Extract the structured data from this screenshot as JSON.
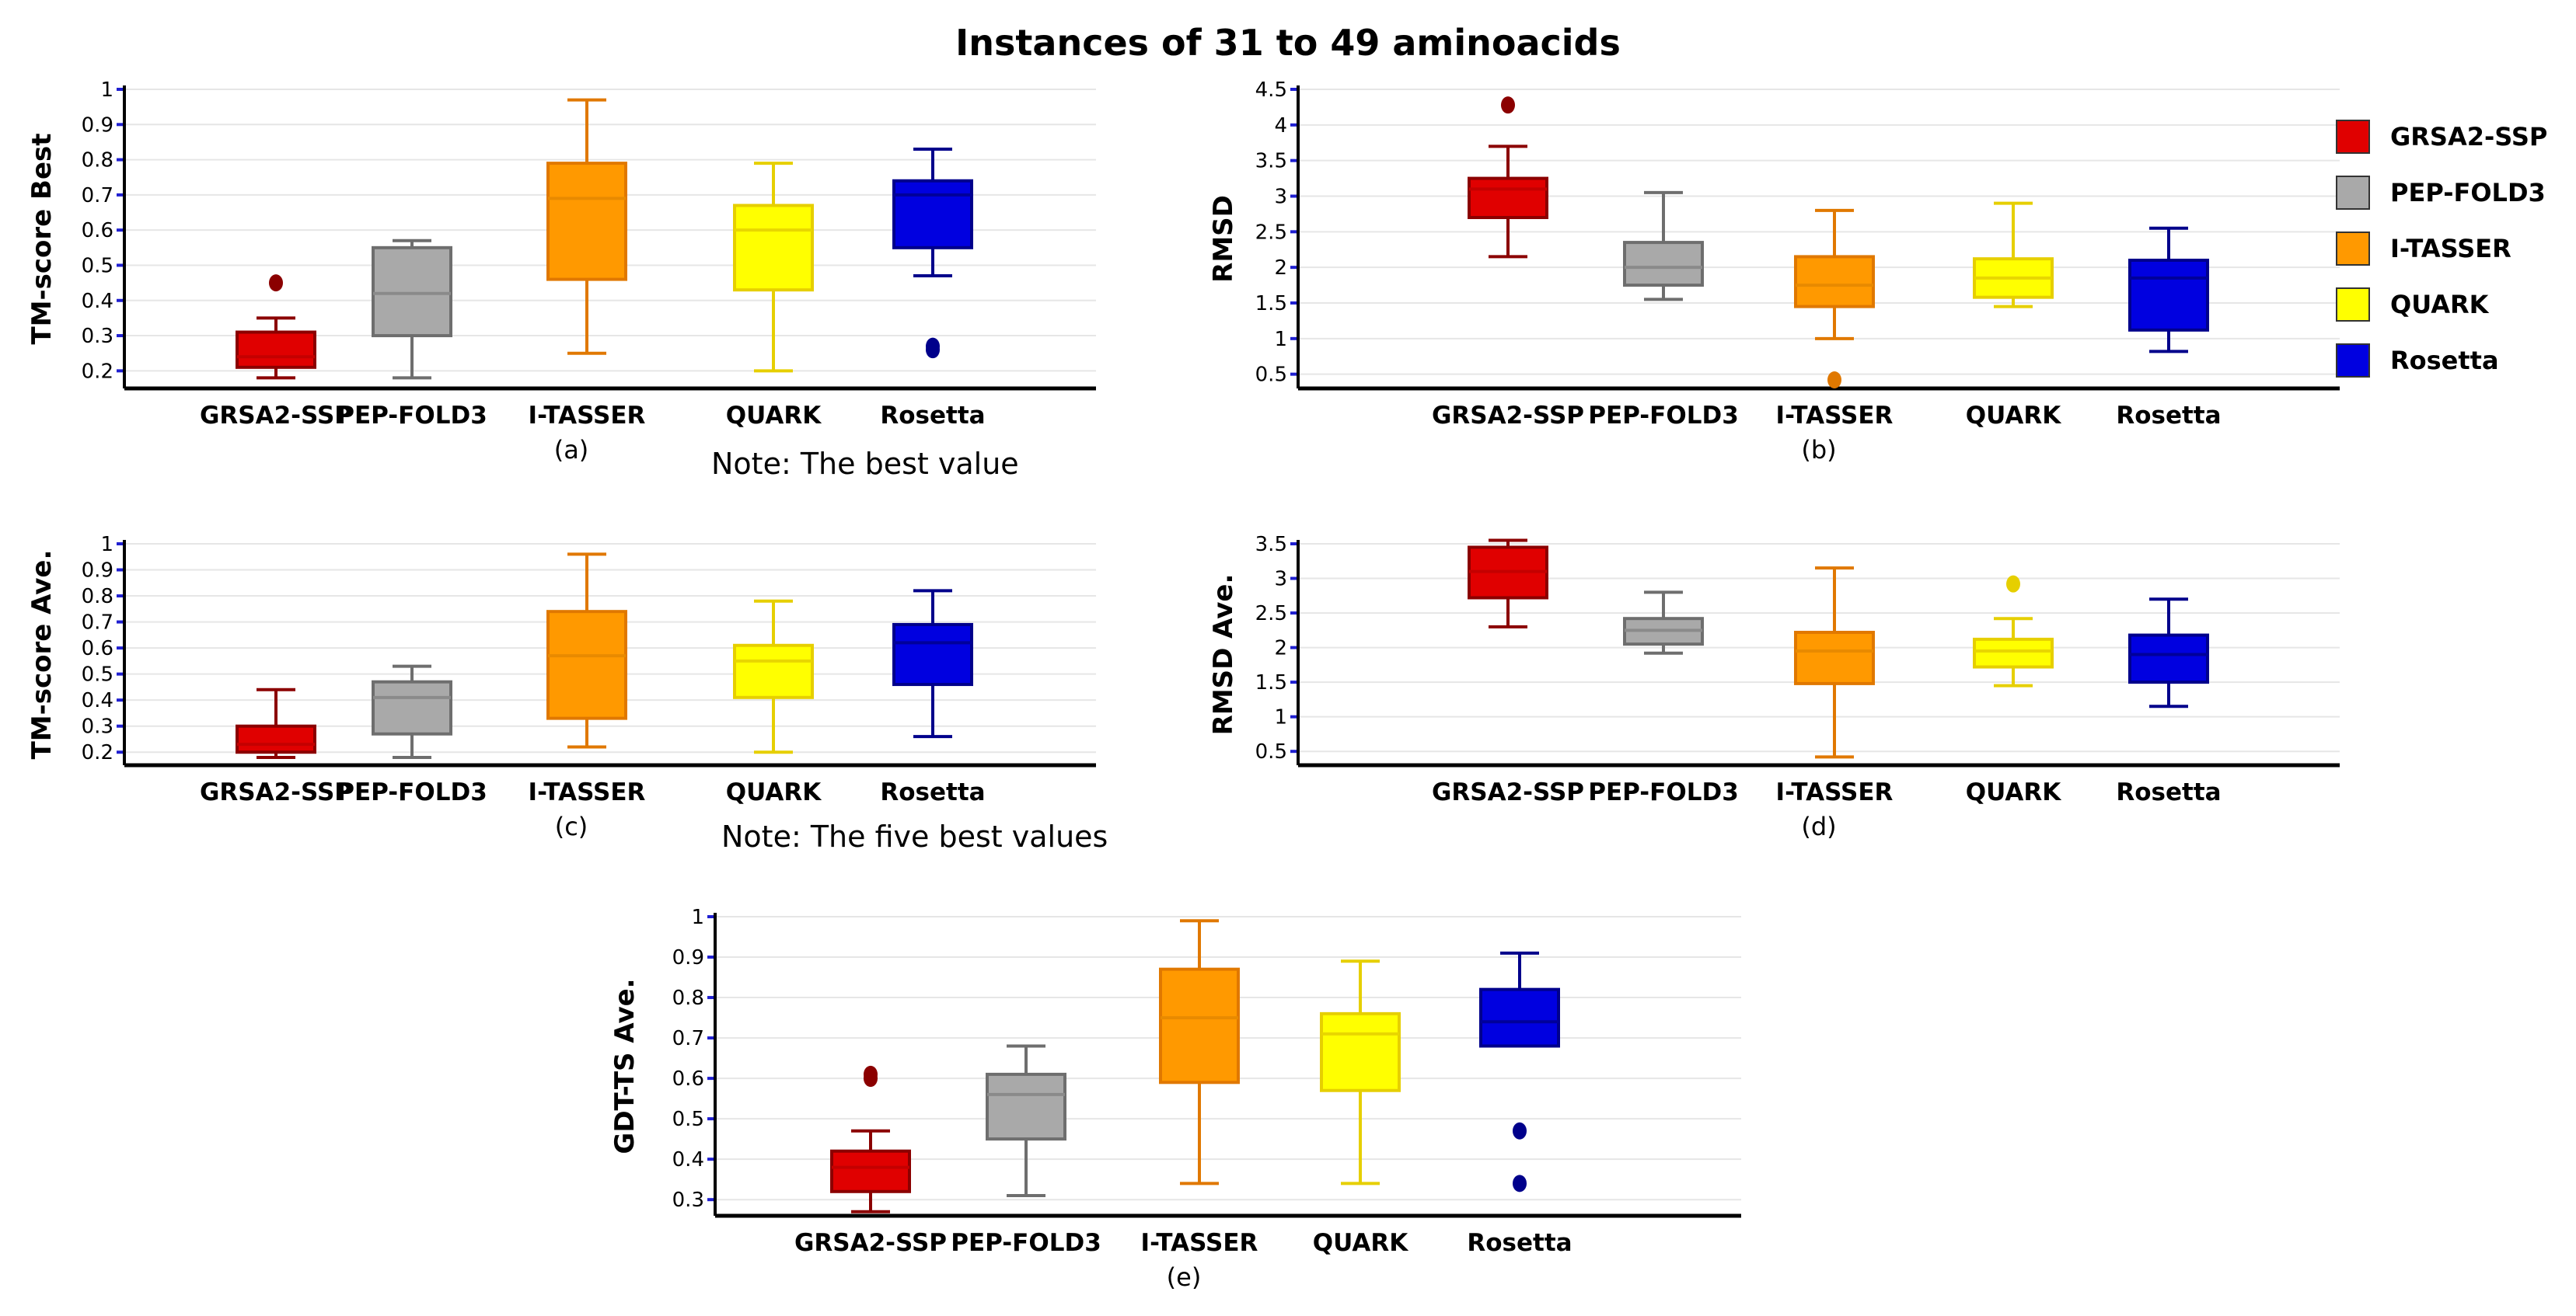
{
  "title": "Instances of 31 to 49 aminoacids",
  "notes": {
    "best": "Note: The best value",
    "five_best": "Note: The five best values"
  },
  "legend": [
    {
      "label": "GRSA2-SSP",
      "color": "#e00000"
    },
    {
      "label": "PEP-FOLD3",
      "color": "#a9a9a9"
    },
    {
      "label": "I-TASSER",
      "color": "#ff9900"
    },
    {
      "label": "QUARK",
      "color": "#ffff00"
    },
    {
      "label": "Rosetta",
      "color": "#0000e0"
    }
  ],
  "chart_data": [
    {
      "id": "a",
      "type": "box",
      "subtitle": "(a)",
      "ylabel": "TM-score Best",
      "categories": [
        "GRSA2-SSP",
        "PEP-FOLD3",
        "I-TASSER",
        "QUARK",
        "Rosetta"
      ],
      "ylim": [
        0.15,
        1.0
      ],
      "yticks": [
        "0.2",
        "0.3",
        "0.4",
        "0.5",
        "0.6",
        "0.7",
        "0.8",
        "0.9",
        "1"
      ],
      "boxes": [
        {
          "whisker_low": 0.18,
          "q1": 0.21,
          "median": 0.24,
          "q3": 0.31,
          "whisker_high": 0.35,
          "outliers": [
            0.45
          ]
        },
        {
          "whisker_low": 0.18,
          "q1": 0.3,
          "median": 0.42,
          "q3": 0.55,
          "whisker_high": 0.57,
          "outliers": []
        },
        {
          "whisker_low": 0.25,
          "q1": 0.46,
          "median": 0.69,
          "q3": 0.79,
          "whisker_high": 0.97,
          "outliers": []
        },
        {
          "whisker_low": 0.2,
          "q1": 0.43,
          "median": 0.6,
          "q3": 0.67,
          "whisker_high": 0.79,
          "outliers": []
        },
        {
          "whisker_low": 0.47,
          "q1": 0.55,
          "median": 0.7,
          "q3": 0.74,
          "whisker_high": 0.83,
          "outliers": [
            0.26,
            0.27
          ]
        }
      ]
    },
    {
      "id": "b",
      "type": "box",
      "subtitle": "(b)",
      "ylabel": "RMSD",
      "categories": [
        "GRSA2-SSP",
        "PEP-FOLD3",
        "I-TASSER",
        "QUARK",
        "Rosetta"
      ],
      "ylim": [
        0.3,
        4.5
      ],
      "yticks": [
        "0.5",
        "1",
        "1.5",
        "2",
        "2.5",
        "3",
        "3.5",
        "4",
        "4.5"
      ],
      "boxes": [
        {
          "whisker_low": 2.15,
          "q1": 2.7,
          "median": 3.1,
          "q3": 3.25,
          "whisker_high": 3.7,
          "outliers": [
            4.28
          ]
        },
        {
          "whisker_low": 1.55,
          "q1": 1.75,
          "median": 2.0,
          "q3": 2.35,
          "whisker_high": 3.05,
          "outliers": []
        },
        {
          "whisker_low": 1.0,
          "q1": 1.45,
          "median": 1.75,
          "q3": 2.15,
          "whisker_high": 2.8,
          "outliers": [
            0.42
          ]
        },
        {
          "whisker_low": 1.45,
          "q1": 1.58,
          "median": 1.85,
          "q3": 2.12,
          "whisker_high": 2.9,
          "outliers": []
        },
        {
          "whisker_low": 0.82,
          "q1": 1.12,
          "median": 1.85,
          "q3": 2.1,
          "whisker_high": 2.55,
          "outliers": []
        }
      ]
    },
    {
      "id": "c",
      "type": "box",
      "subtitle": "(c)",
      "ylabel": "TM-score Ave.",
      "categories": [
        "GRSA2-SSP",
        "PEP-FOLD3",
        "I-TASSER",
        "QUARK",
        "Rosetta"
      ],
      "ylim": [
        0.15,
        1.0
      ],
      "yticks": [
        "0.2",
        "0.3",
        "0.4",
        "0.5",
        "0.6",
        "0.7",
        "0.8",
        "0.9",
        "1"
      ],
      "boxes": [
        {
          "whisker_low": 0.18,
          "q1": 0.2,
          "median": 0.23,
          "q3": 0.3,
          "whisker_high": 0.44,
          "outliers": []
        },
        {
          "whisker_low": 0.18,
          "q1": 0.27,
          "median": 0.41,
          "q3": 0.47,
          "whisker_high": 0.53,
          "outliers": []
        },
        {
          "whisker_low": 0.22,
          "q1": 0.33,
          "median": 0.57,
          "q3": 0.74,
          "whisker_high": 0.96,
          "outliers": []
        },
        {
          "whisker_low": 0.2,
          "q1": 0.41,
          "median": 0.55,
          "q3": 0.61,
          "whisker_high": 0.78,
          "outliers": []
        },
        {
          "whisker_low": 0.26,
          "q1": 0.46,
          "median": 0.62,
          "q3": 0.69,
          "whisker_high": 0.82,
          "outliers": []
        }
      ]
    },
    {
      "id": "d",
      "type": "box",
      "subtitle": "(d)",
      "ylabel": "RMSD Ave.",
      "categories": [
        "GRSA2-SSP",
        "PEP-FOLD3",
        "I-TASSER",
        "QUARK",
        "Rosetta"
      ],
      "ylim": [
        0.3,
        3.5
      ],
      "yticks": [
        "0.5",
        "1",
        "1.5",
        "2",
        "2.5",
        "3",
        "3.5"
      ],
      "boxes": [
        {
          "whisker_low": 2.3,
          "q1": 2.72,
          "median": 3.1,
          "q3": 3.45,
          "whisker_high": 3.55,
          "outliers": []
        },
        {
          "whisker_low": 1.92,
          "q1": 2.05,
          "median": 2.25,
          "q3": 2.42,
          "whisker_high": 2.8,
          "outliers": []
        },
        {
          "whisker_low": 0.42,
          "q1": 1.48,
          "median": 1.95,
          "q3": 2.22,
          "whisker_high": 3.15,
          "outliers": []
        },
        {
          "whisker_low": 1.45,
          "q1": 1.72,
          "median": 1.95,
          "q3": 2.12,
          "whisker_high": 2.42,
          "outliers": [
            2.92
          ]
        },
        {
          "whisker_low": 1.15,
          "q1": 1.5,
          "median": 1.9,
          "q3": 2.18,
          "whisker_high": 2.7,
          "outliers": []
        }
      ]
    },
    {
      "id": "e",
      "type": "box",
      "subtitle": "(e)",
      "ylabel": "GDT-TS Ave.",
      "categories": [
        "GRSA2-SSP",
        "PEP-FOLD3",
        "I-TASSER",
        "QUARK",
        "Rosetta"
      ],
      "ylim": [
        0.26,
        1.0
      ],
      "yticks": [
        "0.3",
        "0.4",
        "0.5",
        "0.6",
        "0.7",
        "0.8",
        "0.9",
        "1"
      ],
      "boxes": [
        {
          "whisker_low": 0.27,
          "q1": 0.32,
          "median": 0.38,
          "q3": 0.42,
          "whisker_high": 0.47,
          "outliers": [
            0.6,
            0.61
          ]
        },
        {
          "whisker_low": 0.31,
          "q1": 0.45,
          "median": 0.56,
          "q3": 0.61,
          "whisker_high": 0.68,
          "outliers": []
        },
        {
          "whisker_low": 0.34,
          "q1": 0.59,
          "median": 0.75,
          "q3": 0.87,
          "whisker_high": 0.99,
          "outliers": []
        },
        {
          "whisker_low": 0.34,
          "q1": 0.57,
          "median": 0.71,
          "q3": 0.76,
          "whisker_high": 0.89,
          "outliers": []
        },
        {
          "whisker_low": 0.68,
          "q1": 0.68,
          "median": 0.74,
          "q3": 0.82,
          "whisker_high": 0.91,
          "outliers": [
            0.47,
            0.34
          ]
        }
      ]
    }
  ]
}
